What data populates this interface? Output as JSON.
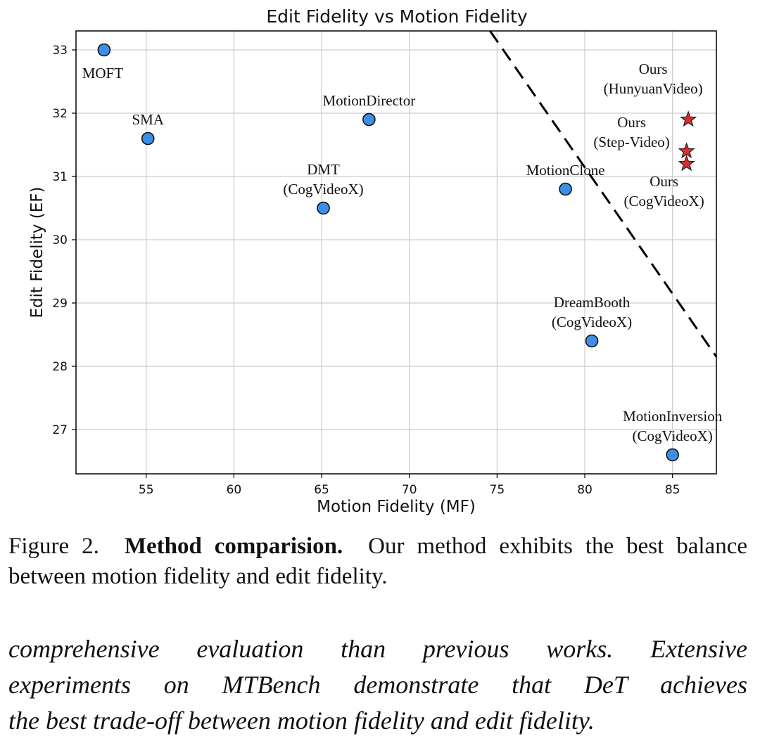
{
  "chart_data": {
    "type": "scatter",
    "title": "Edit Fidelity vs Motion Fidelity",
    "xlabel": "Motion Fidelity (MF)",
    "ylabel": "Edit Fidelity (EF)",
    "xlim": [
      51,
      87.5
    ],
    "ylim": [
      26.3,
      33.3
    ],
    "xticks": [
      55,
      60,
      65,
      70,
      75,
      80,
      85
    ],
    "yticks": [
      27,
      28,
      29,
      30,
      31,
      32,
      33
    ],
    "grid": true,
    "legend": "none",
    "points": [
      {
        "label": [
          "MOFT"
        ],
        "x": 52.6,
        "y": 33.0,
        "marker": "circle",
        "label_pos": "below"
      },
      {
        "label": [
          "SMA"
        ],
        "x": 55.1,
        "y": 31.6,
        "marker": "circle",
        "label_pos": "above"
      },
      {
        "label": [
          "MotionDirector"
        ],
        "x": 67.7,
        "y": 31.9,
        "marker": "circle",
        "label_pos": "above"
      },
      {
        "label": [
          "DMT",
          "(CogVideoX)"
        ],
        "x": 65.1,
        "y": 30.5,
        "marker": "circle",
        "label_pos": "above"
      },
      {
        "label": [
          "MotionClone"
        ],
        "x": 78.9,
        "y": 30.8,
        "marker": "circle",
        "label_pos": "above"
      },
      {
        "label": [
          "DreamBooth",
          "(CogVideoX)"
        ],
        "x": 80.4,
        "y": 28.4,
        "marker": "circle",
        "label_pos": "above"
      },
      {
        "label": [
          "MotionInversion",
          "(CogVideoX)"
        ],
        "x": 85.0,
        "y": 26.6,
        "marker": "circle",
        "label_pos": "above"
      },
      {
        "label": [
          "Ours",
          "(HunyuanVideo)"
        ],
        "x": 85.9,
        "y": 31.9,
        "marker": "star",
        "label_pos": "above-left"
      },
      {
        "label": [
          "Ours",
          "(Step-Video)"
        ],
        "x": 85.8,
        "y": 31.4,
        "marker": "star",
        "label_pos": "left"
      },
      {
        "label": [
          "Ours",
          "(CogVideoX)"
        ],
        "x": 85.8,
        "y": 31.2,
        "marker": "star",
        "label_pos": "below"
      }
    ],
    "trend_line": {
      "x": [
        74.6,
        87.5
      ],
      "y": [
        33.3,
        28.15
      ],
      "style": "dashed"
    },
    "colors": {
      "circle": "#3c8ee6",
      "star": "#e02a2a",
      "grid": "#cccccc"
    }
  },
  "caption": {
    "prefix": "Figure 2.",
    "bold": "Method comparision.",
    "text": "Our method exhibits the best balance between motion fidelity and edit fidelity."
  },
  "body_text": [
    "comprehensive evaluation than previous works. Extensive",
    "experiments on MTBench demonstrate that DeT achieves",
    "the best trade-off between motion fidelity and edit fidelity."
  ]
}
